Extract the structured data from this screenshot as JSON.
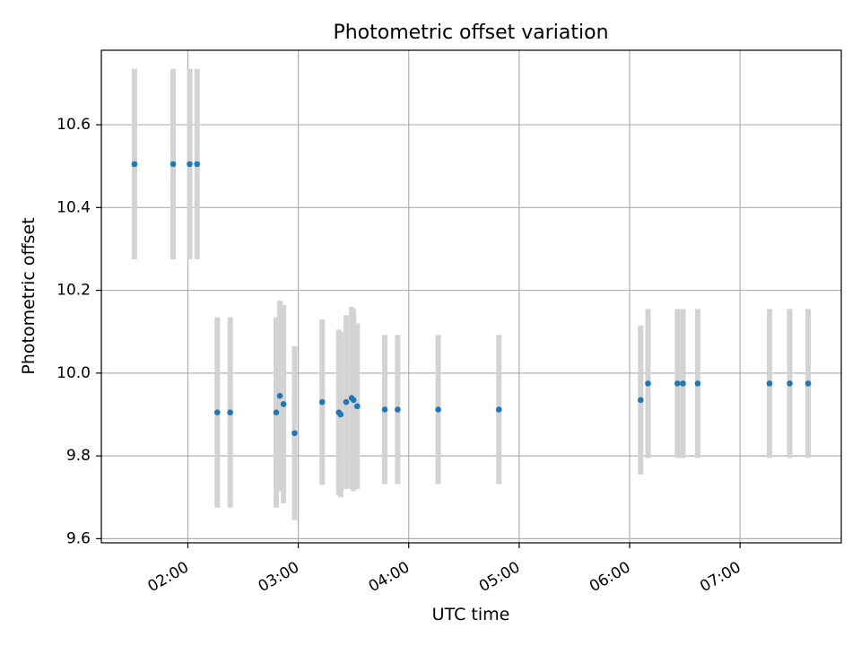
{
  "chart_data": {
    "type": "scatter",
    "title": "Photometric offset variation",
    "xlabel": "UTC time",
    "ylabel": "Photometric offset",
    "x_ticks": [
      "02:00",
      "03:00",
      "04:00",
      "05:00",
      "06:00",
      "07:00"
    ],
    "y_ticks": [
      "9.6",
      "9.8",
      "10.0",
      "10.2",
      "10.4",
      "10.6"
    ],
    "xlim": [
      "01:13",
      "07:55"
    ],
    "ylim": [
      9.59,
      10.78
    ],
    "grid": true,
    "colors": {
      "point": "#1f77b4",
      "errorbar": "#d3d3d3",
      "grid": "#b0b0b0"
    },
    "points": [
      {
        "t": "01:31",
        "y": 10.505,
        "err": 0.23
      },
      {
        "t": "01:52",
        "y": 10.505,
        "err": 0.23
      },
      {
        "t": "02:01",
        "y": 10.505,
        "err": 0.23
      },
      {
        "t": "02:05",
        "y": 10.505,
        "err": 0.23
      },
      {
        "t": "02:16",
        "y": 9.905,
        "err": 0.23
      },
      {
        "t": "02:23",
        "y": 9.905,
        "err": 0.23
      },
      {
        "t": "02:48",
        "y": 9.905,
        "err": 0.23
      },
      {
        "t": "02:50",
        "y": 9.945,
        "err": 0.23
      },
      {
        "t": "02:52",
        "y": 9.925,
        "err": 0.24
      },
      {
        "t": "02:58",
        "y": 9.855,
        "err": 0.21
      },
      {
        "t": "03:13",
        "y": 9.93,
        "err": 0.2
      },
      {
        "t": "03:22",
        "y": 9.905,
        "err": 0.2
      },
      {
        "t": "03:23",
        "y": 9.9,
        "err": 0.2
      },
      {
        "t": "03:26",
        "y": 9.93,
        "err": 0.21
      },
      {
        "t": "03:29",
        "y": 9.94,
        "err": 0.22
      },
      {
        "t": "03:30",
        "y": 9.935,
        "err": 0.22
      },
      {
        "t": "03:32",
        "y": 9.92,
        "err": 0.2
      },
      {
        "t": "03:47",
        "y": 9.912,
        "err": 0.18
      },
      {
        "t": "03:54",
        "y": 9.912,
        "err": 0.18
      },
      {
        "t": "04:16",
        "y": 9.912,
        "err": 0.18
      },
      {
        "t": "04:49",
        "y": 9.912,
        "err": 0.18
      },
      {
        "t": "06:06",
        "y": 9.935,
        "err": 0.18
      },
      {
        "t": "06:10",
        "y": 9.975,
        "err": 0.18
      },
      {
        "t": "06:26",
        "y": 9.975,
        "err": 0.18
      },
      {
        "t": "06:29",
        "y": 9.975,
        "err": 0.18
      },
      {
        "t": "06:37",
        "y": 9.975,
        "err": 0.18
      },
      {
        "t": "07:16",
        "y": 9.975,
        "err": 0.18
      },
      {
        "t": "07:27",
        "y": 9.975,
        "err": 0.18
      },
      {
        "t": "07:37",
        "y": 9.975,
        "err": 0.18
      }
    ]
  }
}
